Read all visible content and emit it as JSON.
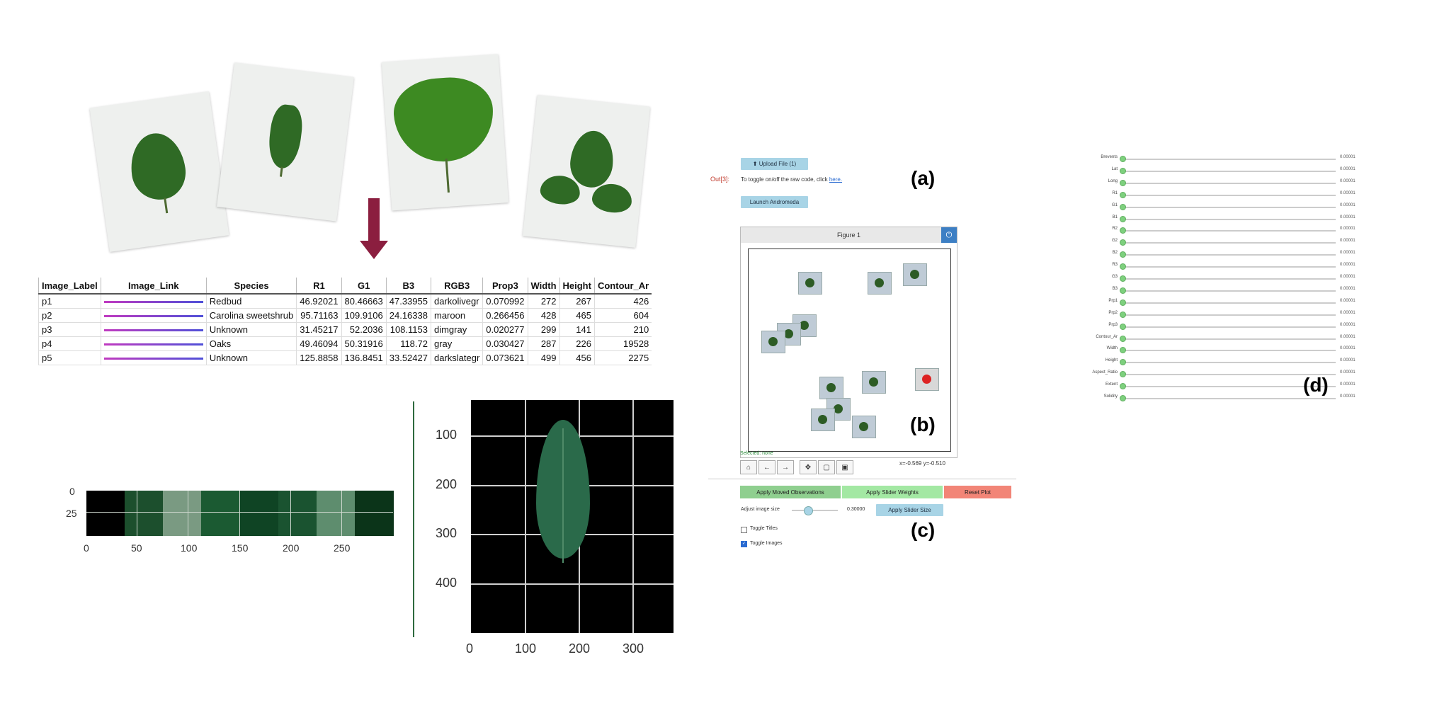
{
  "table": {
    "headers": [
      "Image_Label",
      "Image_Link",
      "Species",
      "R1",
      "G1",
      "B3",
      "RGB3",
      "Prop3",
      "Width",
      "Height",
      "Contour_Ar"
    ],
    "rows": [
      [
        "p1",
        "",
        "Redbud",
        "46.92021",
        "80.46663",
        "47.33955",
        "darkolivegr",
        "0.070992",
        "272",
        "267",
        "426"
      ],
      [
        "p2",
        "",
        "Carolina sweetshrub",
        "95.71163",
        "109.9106",
        "24.16338",
        "maroon",
        "0.266456",
        "428",
        "465",
        "604"
      ],
      [
        "p3",
        "",
        "Unknown",
        "31.45217",
        "52.2036",
        "108.1153",
        "dimgray",
        "0.020277",
        "299",
        "141",
        "210"
      ],
      [
        "p4",
        "",
        "Oaks",
        "49.46094",
        "50.31916",
        "118.72",
        "gray",
        "0.030427",
        "287",
        "226",
        "19528"
      ],
      [
        "p5",
        "",
        "Unknown",
        "125.8858",
        "136.8451",
        "33.52427",
        "darkslategr",
        "0.073621",
        "499",
        "456",
        "2275"
      ]
    ]
  },
  "strip": {
    "y_ticks": [
      "0",
      "25"
    ],
    "x_ticks": [
      "0",
      "50",
      "100",
      "150",
      "200",
      "250"
    ],
    "colors": [
      "#000000",
      "#1c4f2d",
      "#7a9a82",
      "#1b5a32",
      "#0f4424",
      "#1a5330",
      "#5e8d6e",
      "#0b3419"
    ]
  },
  "leaf_plot": {
    "y_ticks": [
      "100",
      "200",
      "300",
      "400"
    ],
    "x_ticks": [
      "0",
      "100",
      "200",
      "300"
    ]
  },
  "widget": {
    "upload_label": "⬆ Upload File (1)",
    "out_prompt": "Out[3]:",
    "toggle_text": "To toggle on/off the raw code, click",
    "toggle_link": "here.",
    "launch_label": "Launch Andromeda",
    "figure_title": "Figure 1",
    "selected_text": "Selected: none",
    "coords_text": "x=-0.569 y=-0.510",
    "apply_moved": "Apply Moved Observations",
    "apply_weights": "Apply Slider Weights",
    "reset_plot": "Reset Plot",
    "adjust_label": "Adjust image size",
    "adjust_value": "0.30000",
    "apply_size": "Apply Slider Size",
    "toggle_titles": "Toggle Titles",
    "toggle_images": "Toggle Images",
    "label_a": "(a)",
    "label_b": "(b)",
    "label_c": "(c)",
    "label_d": "(d)"
  },
  "sliders": [
    {
      "label": "Brevents",
      "value": "0.00001"
    },
    {
      "label": "Lat",
      "value": "0.00001"
    },
    {
      "label": "Long",
      "value": "0.00001"
    },
    {
      "label": "R1",
      "value": "0.00001"
    },
    {
      "label": "G1",
      "value": "0.00001"
    },
    {
      "label": "B1",
      "value": "0.00001"
    },
    {
      "label": "R2",
      "value": "0.00001"
    },
    {
      "label": "G2",
      "value": "0.00001"
    },
    {
      "label": "B2",
      "value": "0.00001"
    },
    {
      "label": "R3",
      "value": "0.00001"
    },
    {
      "label": "G3",
      "value": "0.00001"
    },
    {
      "label": "B3",
      "value": "0.00001"
    },
    {
      "label": "Prp1",
      "value": "0.00001"
    },
    {
      "label": "Prp2",
      "value": "0.00001"
    },
    {
      "label": "Prp3",
      "value": "0.00001"
    },
    {
      "label": "Contour_Ar",
      "value": "0.00001"
    },
    {
      "label": "Width",
      "value": "0.00001"
    },
    {
      "label": "Height",
      "value": "0.00001"
    },
    {
      "label": "Aspect_Ratio",
      "value": "0.00001"
    },
    {
      "label": "Extent",
      "value": "0.00001"
    },
    {
      "label": "Solidity",
      "value": "0.00001"
    }
  ],
  "colors": {
    "arrow": "#8b1e3f",
    "button_blue": "#a8d4e6",
    "button_green": "#8fcf8f",
    "button_light_green": "#a3e8a3",
    "button_red": "#f28577",
    "slider_knob": "#7ed07e"
  }
}
